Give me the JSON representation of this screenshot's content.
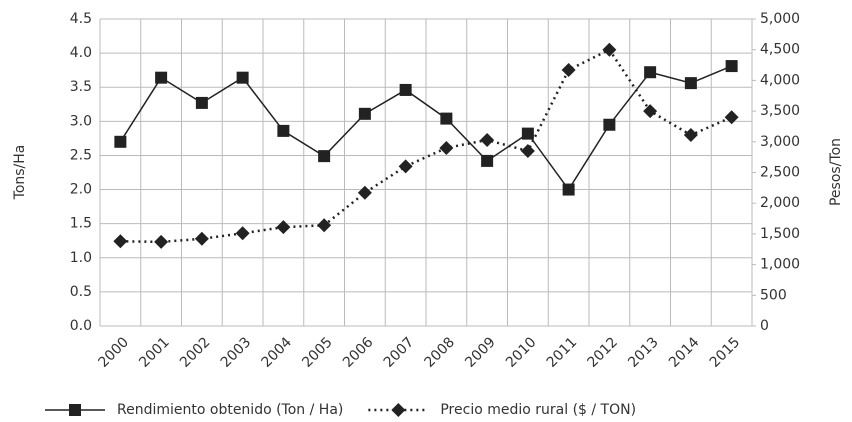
{
  "chart_data": {
    "type": "line",
    "y_label": "Tons/Ha",
    "y2_label": "Pesos/Ton",
    "categories": [
      "2000",
      "2001",
      "2002",
      "2003",
      "2004",
      "2005",
      "2006",
      "2007",
      "2008",
      "2009",
      "2010",
      "2011",
      "2012",
      "2013",
      "2014",
      "2015"
    ],
    "series": [
      {
        "name": "Rendimiento obtenido (Ton / Ha)",
        "color": "#222222",
        "marker": "square",
        "dash": "solid",
        "values": [
          2.7,
          3.64,
          3.27,
          3.64,
          2.86,
          2.49,
          3.11,
          3.46,
          3.04,
          2.42,
          2.82,
          2.0,
          2.95,
          3.72,
          3.56,
          3.81
        ]
      },
      {
        "name": "Precio medio rural ($ / TON)",
        "color": "#222222",
        "marker": "diamond",
        "dash": "dotted",
        "axis": "y2",
        "values": [
          1380,
          1370,
          1420,
          1510,
          1610,
          1640,
          2170,
          2600,
          2900,
          3030,
          2850,
          4170,
          4500,
          3500,
          3110,
          3400
        ]
      }
    ],
    "ylim": [
      0,
      4.5
    ],
    "yticks": [
      {
        "value": 0,
        "label": "0.0"
      },
      {
        "value": 0.5,
        "label": "0.5"
      },
      {
        "value": 1,
        "label": "1.0"
      },
      {
        "value": 1.5,
        "label": "1.5"
      },
      {
        "value": 2,
        "label": "2.0"
      },
      {
        "value": 2.5,
        "label": "2.5"
      },
      {
        "value": 3,
        "label": "3.0"
      },
      {
        "value": 3.5,
        "label": "3.5"
      },
      {
        "value": 4,
        "label": "4.0"
      },
      {
        "value": 4.5,
        "label": "4.5"
      }
    ],
    "y2lim": [
      0,
      5000
    ],
    "y2ticks": [
      0,
      500,
      {
        "value": 1000,
        "label": "1,000"
      },
      {
        "value": 1500,
        "label": "1,500"
      },
      {
        "value": 2000,
        "label": "2,000"
      },
      {
        "value": 2500,
        "label": "2,500"
      },
      {
        "value": 3000,
        "label": "3,000"
      },
      {
        "value": 3500,
        "label": "3,500"
      },
      {
        "value": 4000,
        "label": "4,000"
      },
      {
        "value": 4500,
        "label": "4,500"
      },
      {
        "value": 5000,
        "label": "5,000"
      }
    ],
    "grid": true,
    "legend": "bottom"
  }
}
